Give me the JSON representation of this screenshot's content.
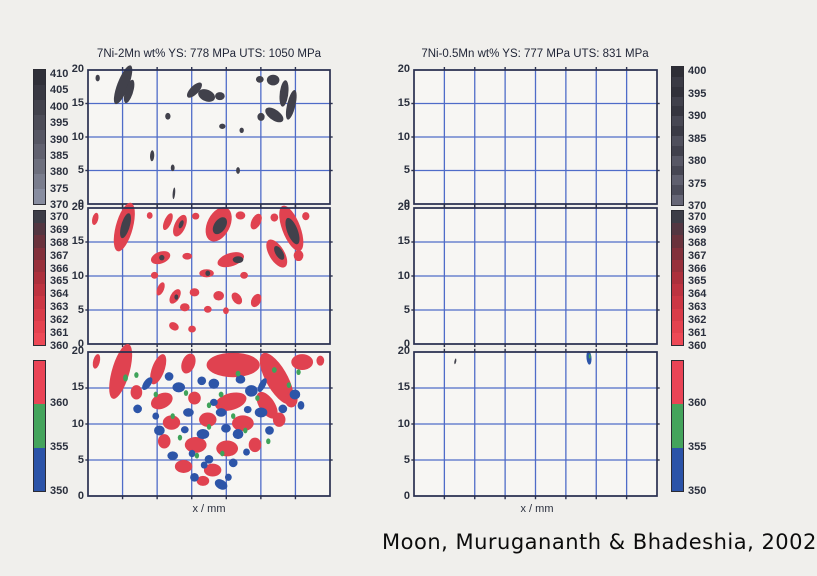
{
  "header": {
    "left_title": "7Ni-2Mn wt% YS: 778 MPa UTS: 1050 MPa",
    "right_title": "7Ni-0.5Mn wt% YS: 777 MPa  UTS: 831 MPa"
  },
  "caption": "Moon, Murugananth & Bhadeshia, 2002",
  "axis": {
    "yticks": [
      "20",
      "15",
      "10",
      "5",
      "0"
    ],
    "xlabel": "x / mm"
  },
  "colors": {
    "d": "#41414b",
    "r": "#e04250",
    "g": "#3fa35a",
    "b": "#2d55a8",
    "grid": "#4f6cc8",
    "border": "#2a3050",
    "plot_bg": "#f7f6f3",
    "page_bg": "#f0efec"
  },
  "colorbars": {
    "row1_left": {
      "labels": [
        "410",
        "405",
        "400",
        "395",
        "390",
        "385",
        "380",
        "375",
        "370"
      ],
      "segments": [
        "#303039",
        "#383842",
        "#42424c",
        "#4c4c57",
        "#565663",
        "#61616f",
        "#6d6f7d",
        "#7a7d8d",
        "#888da0"
      ]
    },
    "row1_right": {
      "labels": [
        "400",
        "395",
        "390",
        "385",
        "380",
        "375",
        "370"
      ],
      "segments": [
        "#2e2e36",
        "#3a3a44",
        "#31313a",
        "#40404b",
        "#35353f",
        "#474753",
        "#3a3a45",
        "#4f4f5c",
        "#40404c",
        "#575765",
        "#464653",
        "#5f5f6e",
        "#4c4c5a",
        "#666676"
      ]
    },
    "row2": {
      "labels": [
        "370",
        "369",
        "368",
        "367",
        "366",
        "365",
        "364",
        "363",
        "362",
        "361",
        "360"
      ],
      "segments": [
        "#3d3d47",
        "#533641",
        "#6a323c",
        "#82303b",
        "#98303b",
        "#ac303c",
        "#bd3340",
        "#cc3744",
        "#d93c49",
        "#e4424f",
        "#ed4956"
      ]
    },
    "row3": {
      "labels": [
        "360",
        "355",
        "350"
      ],
      "segments": [
        "#ea4456",
        "#44a45c",
        "#2b53a8"
      ]
    }
  },
  "chart_data": [
    {
      "id": "left-top",
      "type": "heatmap",
      "column": "left",
      "row": 1,
      "title": "7Ni-2Mn wt% YS: 778 MPa UTS: 1050 MPa",
      "ylim": [
        0,
        20
      ],
      "scale_labels": [
        "410",
        "405",
        "400",
        "395",
        "390",
        "385",
        "380",
        "375",
        "370"
      ],
      "note": "sparse dark-gray contour islands, mostly near top of map",
      "blobs": [
        [
          4,
          18.8,
          0.9,
          0.5,
          0,
          "d"
        ],
        [
          14.5,
          17.8,
          4.5,
          1.6,
          -35,
          "d"
        ],
        [
          17,
          16.8,
          2.5,
          1.2,
          -35,
          "d"
        ],
        [
          44,
          17,
          3.2,
          0.8,
          -15,
          "d"
        ],
        [
          49,
          16.2,
          3.5,
          0.9,
          5,
          "d"
        ],
        [
          54.5,
          16.1,
          2,
          0.6,
          0,
          "d"
        ],
        [
          71,
          18.6,
          1.6,
          0.5,
          0,
          "d"
        ],
        [
          76.5,
          18.5,
          2.6,
          0.8,
          0,
          "d"
        ],
        [
          81,
          16.5,
          2.2,
          1.6,
          -50,
          "d"
        ],
        [
          84,
          14.8,
          2.8,
          1.4,
          -45,
          "d"
        ],
        [
          77,
          13.3,
          3.8,
          0.9,
          10,
          "d"
        ],
        [
          71.5,
          13,
          1.5,
          0.6,
          0,
          "d"
        ],
        [
          33,
          13.1,
          1.1,
          0.5,
          0,
          "d"
        ],
        [
          55.5,
          11.6,
          1.3,
          0.4,
          0,
          "d"
        ],
        [
          63.5,
          11,
          0.9,
          0.4,
          0,
          "d"
        ],
        [
          26.5,
          7.2,
          0.9,
          0.8,
          -30,
          "d"
        ],
        [
          35,
          5.4,
          0.8,
          0.5,
          0,
          "d"
        ],
        [
          62,
          5,
          0.8,
          0.5,
          0,
          "d"
        ],
        [
          35.5,
          1.6,
          0.5,
          0.9,
          20,
          "d"
        ]
      ]
    },
    {
      "id": "left-middle",
      "type": "heatmap",
      "column": "left",
      "row": 2,
      "ylim": [
        0,
        20
      ],
      "scale_labels": [
        "370",
        "369",
        "368",
        "367",
        "366",
        "365",
        "364",
        "363",
        "362",
        "361",
        "360"
      ],
      "note": "red contour patches with dark cores, banded across upper half",
      "blobs": [
        [
          3,
          18.4,
          1.4,
          0.8,
          -20,
          "r"
        ],
        [
          15,
          17.2,
          5,
          2.6,
          -35,
          "r"
        ],
        [
          25.5,
          18.9,
          1.2,
          0.5,
          0,
          "r"
        ],
        [
          33,
          18,
          2.2,
          0.9,
          -25,
          "r"
        ],
        [
          38,
          17.4,
          3,
          1.3,
          -20,
          "r"
        ],
        [
          44.5,
          18.8,
          1.5,
          0.5,
          0,
          "r"
        ],
        [
          54,
          17.6,
          5.5,
          2.3,
          -12,
          "r"
        ],
        [
          63,
          18.9,
          2,
          0.6,
          0,
          "r"
        ],
        [
          69.5,
          18,
          2.4,
          1,
          -15,
          "r"
        ],
        [
          77,
          18.6,
          1.6,
          0.6,
          0,
          "r"
        ],
        [
          84,
          17,
          5.5,
          2.4,
          28,
          "r"
        ],
        [
          90,
          18.8,
          1.5,
          0.6,
          0,
          "r"
        ],
        [
          30,
          12.7,
          4,
          0.9,
          -5,
          "r"
        ],
        [
          41,
          12.9,
          2,
          0.5,
          0,
          "r"
        ],
        [
          59,
          12.4,
          5.5,
          1,
          -5,
          "r"
        ],
        [
          78,
          13.3,
          4.5,
          1.6,
          18,
          "r"
        ],
        [
          87,
          13,
          2,
          0.8,
          0,
          "r"
        ],
        [
          27.5,
          10.1,
          1.5,
          0.5,
          0,
          "r"
        ],
        [
          49,
          10.4,
          3,
          0.6,
          0,
          "r"
        ],
        [
          64.5,
          10.1,
          1.6,
          0.5,
          0,
          "r"
        ],
        [
          30,
          8.1,
          1.8,
          0.8,
          -20,
          "r"
        ],
        [
          36,
          7,
          2.4,
          0.9,
          -15,
          "r"
        ],
        [
          44,
          7.6,
          2,
          0.6,
          0,
          "r"
        ],
        [
          54,
          7.1,
          2.2,
          0.7,
          0,
          "r"
        ],
        [
          61.5,
          6.7,
          2.2,
          0.8,
          10,
          "r"
        ],
        [
          69.5,
          6.4,
          2.2,
          0.9,
          -10,
          "r"
        ],
        [
          40,
          5.4,
          2,
          0.6,
          0,
          "r"
        ],
        [
          49.5,
          5.1,
          1.6,
          0.5,
          0,
          "r"
        ],
        [
          57,
          4.9,
          1.2,
          0.5,
          0,
          "r"
        ],
        [
          35.5,
          2.6,
          2,
          0.6,
          5,
          "r"
        ],
        [
          43,
          2.2,
          1.6,
          0.5,
          0,
          "r"
        ],
        [
          15.5,
          17.4,
          2.6,
          1.3,
          -35,
          "d"
        ],
        [
          38.5,
          17.6,
          1.1,
          0.5,
          -20,
          "d"
        ],
        [
          54.5,
          17.4,
          3,
          1.1,
          -12,
          "d"
        ],
        [
          84.5,
          16.6,
          3.2,
          1.4,
          28,
          "d"
        ],
        [
          62,
          12.4,
          2.2,
          0.5,
          0,
          "d"
        ],
        [
          79,
          13.4,
          2.2,
          0.8,
          18,
          "d"
        ],
        [
          30.5,
          12.7,
          1.1,
          0.4,
          0,
          "d"
        ],
        [
          36.5,
          6.9,
          0.8,
          0.4,
          0,
          "d"
        ],
        [
          49.5,
          10.4,
          1,
          0.4,
          0,
          "d"
        ]
      ]
    },
    {
      "id": "left-bottom",
      "type": "heatmap",
      "column": "left",
      "row": 3,
      "ylim": [
        0,
        20
      ],
      "scale_labels": [
        "360",
        "355",
        "350"
      ],
      "xlabel": "x / mm",
      "note": "dense weld-pool shaped mosaic of red, green and blue contours",
      "blobs": [
        [
          13.5,
          17.3,
          5.5,
          2.6,
          -35,
          "r"
        ],
        [
          3.5,
          18.7,
          1.6,
          0.9,
          -20,
          "r"
        ],
        [
          29,
          17.6,
          3.6,
          1.6,
          -25,
          "r"
        ],
        [
          41.5,
          18.4,
          3,
          1.3,
          -10,
          "r"
        ],
        [
          60,
          18.2,
          11,
          1.7,
          0,
          "r"
        ],
        [
          78,
          16.3,
          7.5,
          2.4,
          22,
          "r"
        ],
        [
          88.5,
          18.6,
          4.5,
          1.1,
          0,
          "r"
        ],
        [
          96,
          18.8,
          1.6,
          0.7,
          0,
          "r"
        ],
        [
          20,
          14.4,
          2.4,
          1,
          0,
          "r"
        ],
        [
          30.5,
          13.2,
          4.5,
          1.1,
          -5,
          "r"
        ],
        [
          44,
          13.6,
          2.6,
          0.9,
          0,
          "r"
        ],
        [
          59,
          13.1,
          6.5,
          1.2,
          -4,
          "r"
        ],
        [
          74,
          12.6,
          4.5,
          1.5,
          15,
          "r"
        ],
        [
          84,
          13.4,
          2.6,
          1.1,
          0,
          "r"
        ],
        [
          34.5,
          10.2,
          3.6,
          1,
          0,
          "r"
        ],
        [
          49.5,
          10.6,
          3.6,
          1,
          0,
          "r"
        ],
        [
          64,
          10.1,
          4.5,
          1.1,
          0,
          "r"
        ],
        [
          79,
          10.6,
          2.6,
          1,
          0,
          "r"
        ],
        [
          31.5,
          7.6,
          2.6,
          1,
          0,
          "r"
        ],
        [
          44.5,
          7.1,
          4.5,
          1.1,
          0,
          "r"
        ],
        [
          57.5,
          6.6,
          4.5,
          1.1,
          0,
          "r"
        ],
        [
          69,
          7.1,
          2.6,
          1,
          0,
          "r"
        ],
        [
          39.5,
          4.1,
          3.6,
          0.9,
          0,
          "r"
        ],
        [
          51.5,
          3.6,
          3.6,
          0.9,
          0,
          "r"
        ],
        [
          47.5,
          2.1,
          2.6,
          0.7,
          0,
          "r"
        ],
        [
          24.5,
          15.6,
          2.2,
          0.7,
          -15,
          "b"
        ],
        [
          37.5,
          15.1,
          2.6,
          0.7,
          0,
          "b"
        ],
        [
          52,
          15.6,
          2.2,
          0.7,
          0,
          "b"
        ],
        [
          67.5,
          14.6,
          2.6,
          0.8,
          0,
          "b"
        ],
        [
          85.5,
          14.1,
          2.2,
          0.7,
          0,
          "b"
        ],
        [
          20.5,
          12.1,
          1.8,
          0.6,
          0,
          "b"
        ],
        [
          41.5,
          11.6,
          2.2,
          0.6,
          0,
          "b"
        ],
        [
          55,
          11.6,
          2.2,
          0.6,
          0,
          "b"
        ],
        [
          71.5,
          11.6,
          2.6,
          0.7,
          0,
          "b"
        ],
        [
          29.5,
          9.1,
          2.2,
          0.7,
          0,
          "b"
        ],
        [
          47.5,
          8.6,
          2.6,
          0.7,
          0,
          "b"
        ],
        [
          62,
          8.6,
          2.2,
          0.7,
          0,
          "b"
        ],
        [
          75,
          9.1,
          1.8,
          0.6,
          0,
          "b"
        ],
        [
          35,
          5.6,
          2.2,
          0.6,
          0,
          "b"
        ],
        [
          50,
          5.1,
          1.8,
          0.6,
          0,
          "b"
        ],
        [
          60,
          4.6,
          1.8,
          0.6,
          0,
          "b"
        ],
        [
          44,
          2.6,
          1.8,
          0.6,
          0,
          "b"
        ],
        [
          55,
          1.6,
          2.6,
          0.7,
          5,
          "b"
        ],
        [
          65.5,
          6.1,
          1.4,
          0.5,
          0,
          "b"
        ],
        [
          28,
          11.1,
          1.4,
          0.5,
          0,
          "b"
        ],
        [
          80.5,
          12.1,
          1.8,
          0.6,
          0,
          "b"
        ],
        [
          88,
          12.6,
          1.4,
          0.6,
          0,
          "b"
        ],
        [
          58,
          2.6,
          1.4,
          0.5,
          0,
          "b"
        ],
        [
          33.5,
          16.6,
          1.8,
          0.6,
          0,
          "b"
        ],
        [
          47,
          16,
          1.8,
          0.6,
          0,
          "b"
        ],
        [
          63,
          16.2,
          2,
          0.6,
          0,
          "b"
        ],
        [
          72,
          15.4,
          2,
          0.7,
          -20,
          "b"
        ],
        [
          57,
          9.4,
          2,
          0.6,
          0,
          "b"
        ],
        [
          40,
          9.2,
          1.6,
          0.5,
          0,
          "b"
        ],
        [
          52,
          13,
          1.6,
          0.5,
          0,
          "b"
        ],
        [
          66,
          12,
          1.6,
          0.5,
          0,
          "b"
        ],
        [
          48,
          4.3,
          1.4,
          0.5,
          0,
          "b"
        ],
        [
          43,
          5.9,
          1.4,
          0.5,
          0,
          "b"
        ],
        [
          15.5,
          16.4,
          1,
          0.5,
          0,
          "g"
        ],
        [
          28,
          14.1,
          0.9,
          0.4,
          0,
          "g"
        ],
        [
          40.5,
          14.3,
          0.9,
          0.4,
          0,
          "g"
        ],
        [
          55,
          14.1,
          1,
          0.4,
          0,
          "g"
        ],
        [
          70,
          13.6,
          0.9,
          0.4,
          0,
          "g"
        ],
        [
          83,
          15.4,
          0.9,
          0.4,
          0,
          "g"
        ],
        [
          35,
          11.1,
          0.9,
          0.4,
          0,
          "g"
        ],
        [
          50,
          9.6,
          0.9,
          0.4,
          0,
          "g"
        ],
        [
          65,
          9.1,
          0.9,
          0.4,
          0,
          "g"
        ],
        [
          45,
          5.6,
          0.9,
          0.4,
          0,
          "g"
        ],
        [
          55.5,
          5.9,
          0.9,
          0.4,
          0,
          "g"
        ],
        [
          38,
          8.1,
          0.9,
          0.4,
          0,
          "g"
        ],
        [
          60,
          11.1,
          0.9,
          0.4,
          0,
          "g"
        ],
        [
          74.5,
          7.6,
          0.9,
          0.4,
          0,
          "g"
        ],
        [
          50,
          12.6,
          0.9,
          0.4,
          0,
          "g"
        ],
        [
          20,
          16.8,
          0.9,
          0.4,
          0,
          "g"
        ],
        [
          62,
          17,
          1,
          0.4,
          0,
          "g"
        ],
        [
          77,
          17.5,
          1,
          0.4,
          0,
          "g"
        ],
        [
          87,
          17.2,
          0.9,
          0.4,
          0,
          "g"
        ]
      ]
    },
    {
      "id": "right-top",
      "type": "heatmap",
      "column": "right",
      "row": 1,
      "title": "7Ni-0.5Mn wt% YS: 777 MPa  UTS: 831 MPa",
      "ylim": [
        0,
        20
      ],
      "scale_labels": [
        "400",
        "395",
        "390",
        "385",
        "380",
        "375",
        "370"
      ],
      "note": "empty grid, no contours",
      "blobs": []
    },
    {
      "id": "right-middle",
      "type": "heatmap",
      "column": "right",
      "row": 2,
      "ylim": [
        0,
        20
      ],
      "scale_labels": [
        "370",
        "369",
        "368",
        "367",
        "366",
        "365",
        "364",
        "363",
        "362",
        "361",
        "360"
      ],
      "note": "empty grid, no contours",
      "blobs": []
    },
    {
      "id": "right-bottom",
      "type": "heatmap",
      "column": "right",
      "row": 3,
      "ylim": [
        0,
        20
      ],
      "scale_labels": [
        "360",
        "355",
        "350"
      ],
      "xlabel": "x / mm",
      "note": "single tiny blue/green speck near top right, faint mark top left",
      "blobs": [
        [
          17,
          18.7,
          0.5,
          0.3,
          -40,
          "d"
        ],
        [
          72,
          19.2,
          1.1,
          0.9,
          30,
          "b"
        ],
        [
          72.3,
          19.4,
          0.4,
          0.3,
          0,
          "g"
        ]
      ]
    }
  ]
}
